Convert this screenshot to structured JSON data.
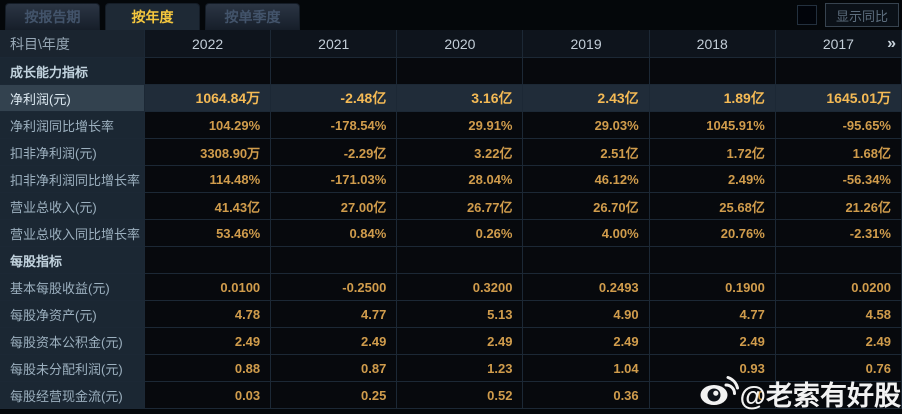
{
  "tabs": [
    {
      "name": "tab-report-period",
      "label": "按报告期",
      "active": false
    },
    {
      "name": "tab-by-year",
      "label": "按年度",
      "active": true
    },
    {
      "name": "tab-by-quarter",
      "label": "按单季度",
      "active": false
    }
  ],
  "controls": {
    "show_yoy_label": "显示同比",
    "checkbox_checked": false
  },
  "table": {
    "corner_label": "科目\\年度",
    "years": [
      "2022",
      "2021",
      "2020",
      "2019",
      "2018",
      "2017"
    ],
    "more_icon": "»",
    "rows": [
      {
        "type": "section",
        "label": "成长能力指标",
        "values": [
          "",
          "",
          "",
          "",
          "",
          ""
        ]
      },
      {
        "type": "highlight",
        "label": "净利润(元)",
        "values": [
          "1064.84万",
          "-2.48亿",
          "3.16亿",
          "2.43亿",
          "1.89亿",
          "1645.01万"
        ]
      },
      {
        "type": "data",
        "label": "净利润同比增长率",
        "values": [
          "104.29%",
          "-178.54%",
          "29.91%",
          "29.03%",
          "1045.91%",
          "-95.65%"
        ]
      },
      {
        "type": "data",
        "label": "扣非净利润(元)",
        "values": [
          "3308.90万",
          "-2.29亿",
          "3.22亿",
          "2.51亿",
          "1.72亿",
          "1.68亿"
        ]
      },
      {
        "type": "data",
        "label": "扣非净利润同比增长率",
        "values": [
          "114.48%",
          "-171.03%",
          "28.04%",
          "46.12%",
          "2.49%",
          "-56.34%"
        ]
      },
      {
        "type": "data",
        "label": "营业总收入(元)",
        "values": [
          "41.43亿",
          "27.00亿",
          "26.77亿",
          "26.70亿",
          "25.68亿",
          "21.26亿"
        ]
      },
      {
        "type": "data",
        "label": "营业总收入同比增长率",
        "values": [
          "53.46%",
          "0.84%",
          "0.26%",
          "4.00%",
          "20.76%",
          "-2.31%"
        ]
      },
      {
        "type": "section",
        "label": "每股指标",
        "values": [
          "",
          "",
          "",
          "",
          "",
          ""
        ]
      },
      {
        "type": "data",
        "label": "基本每股收益(元)",
        "values": [
          "0.0100",
          "-0.2500",
          "0.3200",
          "0.2493",
          "0.1900",
          "0.0200"
        ]
      },
      {
        "type": "data",
        "label": "每股净资产(元)",
        "values": [
          "4.78",
          "4.77",
          "5.13",
          "4.90",
          "4.77",
          "4.58"
        ]
      },
      {
        "type": "data",
        "label": "每股资本公积金(元)",
        "values": [
          "2.49",
          "2.49",
          "2.49",
          "2.49",
          "2.49",
          "2.49"
        ]
      },
      {
        "type": "data",
        "label": "每股未分配利润(元)",
        "values": [
          "0.88",
          "0.87",
          "1.23",
          "1.04",
          "0.93",
          "0.76"
        ]
      },
      {
        "type": "data",
        "label": "每股经营现金流(元)",
        "values": [
          "0.03",
          "0.25",
          "0.52",
          "0.36",
          "0",
          ""
        ]
      }
    ]
  },
  "watermark": {
    "icon": "weibo-icon",
    "text": "@老索有好股"
  },
  "colors": {
    "value_gold": "#d09c4c",
    "highlight_gold": "#f4ba55",
    "tab_active_text": "#f5c73e",
    "row_highlight_bg": "#202c39",
    "label_column_bg": "#1b2733",
    "watermark_white": "#ffffff"
  }
}
